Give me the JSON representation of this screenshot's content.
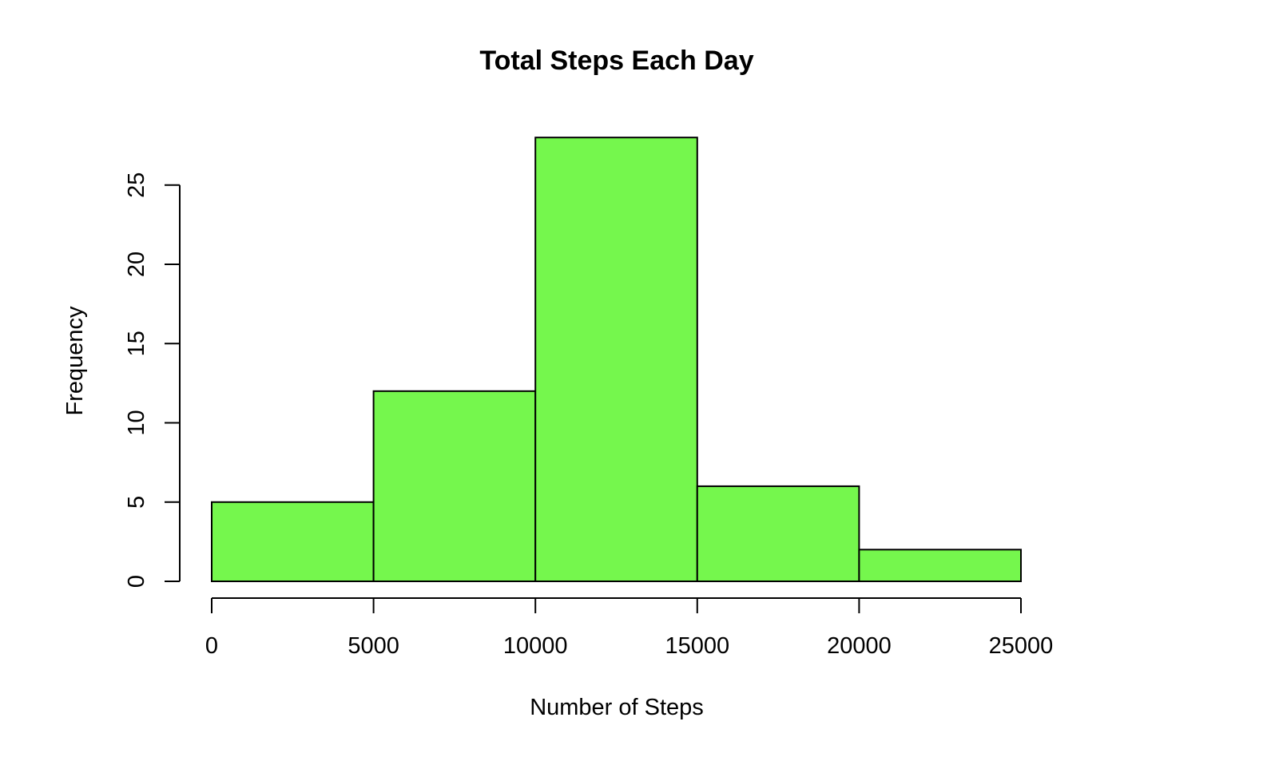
{
  "chart_data": {
    "type": "bar",
    "title": "Total Steps Each Day",
    "xlabel": "Number of Steps",
    "ylabel": "Frequency",
    "bins": [
      {
        "start": 0,
        "end": 5000,
        "value": 5
      },
      {
        "start": 5000,
        "end": 10000,
        "value": 12
      },
      {
        "start": 10000,
        "end": 15000,
        "value": 28
      },
      {
        "start": 15000,
        "end": 20000,
        "value": 6
      },
      {
        "start": 20000,
        "end": 25000,
        "value": 2
      }
    ],
    "xticks": [
      "0",
      "5000",
      "10000",
      "15000",
      "20000",
      "25000"
    ],
    "yticks": [
      "0",
      "5",
      "10",
      "15",
      "20",
      "25"
    ],
    "xlim": [
      0,
      25000
    ],
    "ylim": [
      0,
      28
    ],
    "grid": false,
    "bar_color": "#75f74d",
    "edge_color": "#000000"
  }
}
